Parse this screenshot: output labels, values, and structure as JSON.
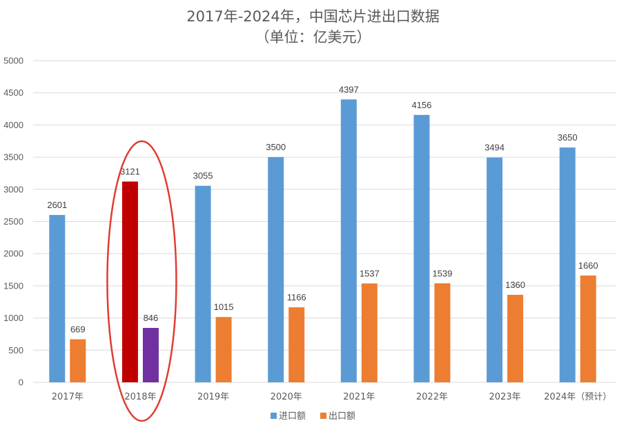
{
  "chart_data": {
    "type": "bar",
    "title": "2017年-2024年，中国芯片进出口数据",
    "subtitle": "（单位：亿美元）",
    "categories": [
      "2017年",
      "2018年",
      "2019年",
      "2020年",
      "2021年",
      "2022年",
      "2023年",
      "2024年（预计）"
    ],
    "series": [
      {
        "name": "进口额",
        "color": "#5b9bd5",
        "values": [
          2601,
          3121,
          3055,
          3500,
          4397,
          4156,
          3494,
          3650
        ]
      },
      {
        "name": "出口额",
        "color": "#ed7d31",
        "values": [
          669,
          846,
          1015,
          1166,
          1537,
          1539,
          1360,
          1660
        ]
      }
    ],
    "highlight": {
      "category": "2018年",
      "import_color": "#c00000",
      "export_color": "#7030a0",
      "ellipse_color": "#e03c31"
    },
    "ylim": [
      0,
      5000
    ],
    "yticks": [
      0,
      500,
      1000,
      1500,
      2000,
      2500,
      3000,
      3500,
      4000,
      4500,
      5000
    ],
    "grid": true,
    "legend": "bottom",
    "xlabel": "",
    "ylabel": ""
  }
}
